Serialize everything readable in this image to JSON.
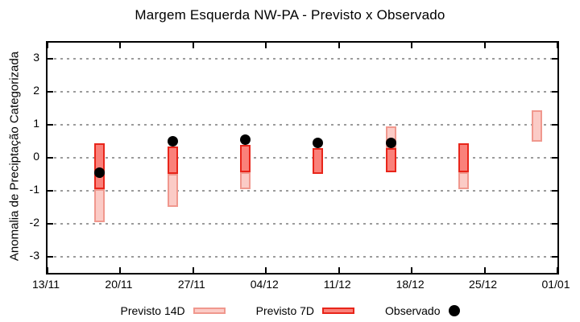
{
  "chart_data": {
    "type": "candlestick-range",
    "title": "Margem Esquerda NW-PA - Previsto x Observado",
    "xlabel": "",
    "ylabel": "Anomalia de Preciptação Categorizada",
    "ylim": [
      -3.5,
      3.5
    ],
    "yticks": [
      3,
      2,
      1,
      0,
      -1,
      -2,
      -3
    ],
    "grid": "horizontal-dotted",
    "x_total_days": 49,
    "xticks": [
      {
        "day": 0,
        "label": "13/11"
      },
      {
        "day": 7,
        "label": "20/11"
      },
      {
        "day": 14,
        "label": "27/11"
      },
      {
        "day": 21,
        "label": "04/12"
      },
      {
        "day": 28,
        "label": "11/12"
      },
      {
        "day": 35,
        "label": "18/12"
      },
      {
        "day": 42,
        "label": "25/12"
      },
      {
        "day": 49,
        "label": "01/01"
      }
    ],
    "groups": [
      {
        "date": "18/11",
        "day": 5,
        "previsto_14d": [
          -1.95,
          -0.95
        ],
        "previsto_7d": [
          -0.95,
          0.45
        ],
        "observado": -0.45
      },
      {
        "date": "25/11",
        "day": 12,
        "previsto_14d": [
          -1.5,
          -0.5
        ],
        "previsto_7d": [
          -0.5,
          0.35
        ],
        "observado": 0.5
      },
      {
        "date": "02/12",
        "day": 19,
        "previsto_14d": [
          -0.95,
          -0.45
        ],
        "previsto_7d": [
          -0.45,
          0.4
        ],
        "observado": 0.55
      },
      {
        "date": "09/12",
        "day": 26,
        "previsto_14d": null,
        "previsto_7d": [
          -0.5,
          0.3
        ],
        "observado": 0.45
      },
      {
        "date": "16/12",
        "day": 33,
        "previsto_14d": [
          0.3,
          0.95
        ],
        "previsto_7d": [
          -0.45,
          0.3
        ],
        "observado": 0.45
      },
      {
        "date": "23/12",
        "day": 40,
        "previsto_14d": [
          -0.95,
          -0.45
        ],
        "previsto_7d": [
          -0.45,
          0.45
        ],
        "observado": null
      },
      {
        "date": "30/12",
        "day": 47,
        "previsto_14d": [
          0.5,
          1.45
        ],
        "previsto_7d": null,
        "observado": null
      }
    ],
    "legend_position": "bottom",
    "legend": [
      {
        "label": "Previsto 14D",
        "swatch": "previsto_14d"
      },
      {
        "label": "Previsto 7D",
        "swatch": "previsto_7d"
      },
      {
        "label": "Observado",
        "swatch": "observado"
      }
    ],
    "colors": {
      "previsto_14d_fill": "#fbcbc6",
      "previsto_14d_border": "#f0988e",
      "previsto_7d_fill": "#fa817a",
      "previsto_7d_border": "#e8251a",
      "observado": "#000000",
      "grid": "#9c9c9c",
      "border": "#000000"
    }
  }
}
